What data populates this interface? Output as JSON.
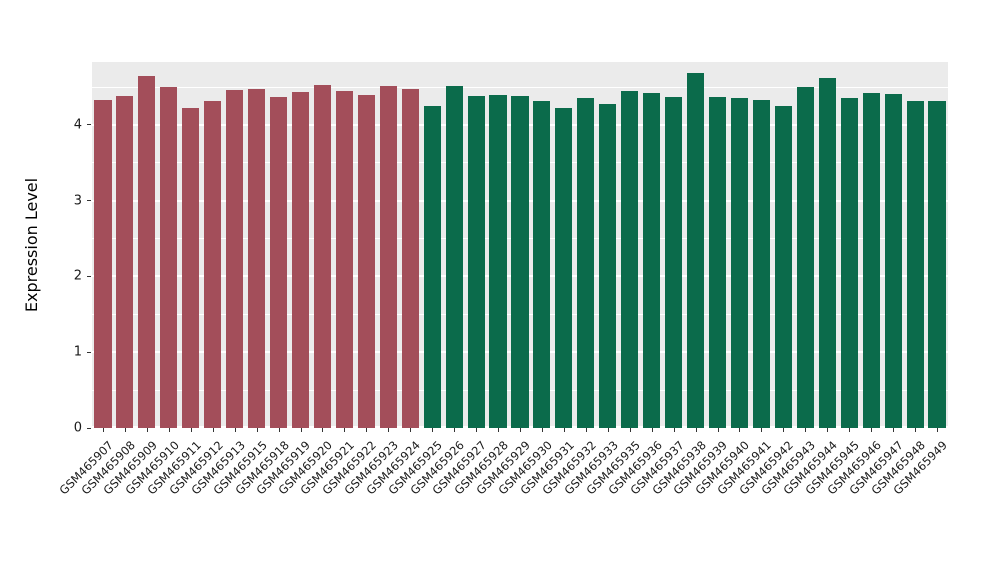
{
  "chart_data": {
    "type": "bar",
    "title": "",
    "xlabel": "",
    "ylabel": "Expression Level",
    "ylim": [
      0,
      4.83
    ],
    "y_ticks": [
      0,
      1,
      2,
      3,
      4
    ],
    "grid": "on",
    "legend": "none",
    "panel_background": "#EBEBEB",
    "gridline_color": "#ffffff",
    "group_split_index": 15,
    "bar_colors": {
      "group1": "#A34E5A",
      "group2": "#0B6B4B"
    },
    "categories": [
      "GSM465907",
      "GSM465908",
      "GSM465909",
      "GSM465910",
      "GSM465911",
      "GSM465912",
      "GSM465913",
      "GSM465915",
      "GSM465918",
      "GSM465919",
      "GSM465920",
      "GSM465921",
      "GSM465922",
      "GSM465923",
      "GSM465924",
      "GSM465925",
      "GSM465926",
      "GSM465927",
      "GSM465928",
      "GSM465929",
      "GSM465930",
      "GSM465931",
      "GSM465932",
      "GSM465933",
      "GSM465935",
      "GSM465936",
      "GSM465937",
      "GSM465938",
      "GSM465939",
      "GSM465940",
      "GSM465941",
      "GSM465942",
      "GSM465943",
      "GSM465944",
      "GSM465945",
      "GSM465946",
      "GSM465947",
      "GSM465948",
      "GSM465949"
    ],
    "values": [
      4.33,
      4.38,
      4.65,
      4.5,
      4.22,
      4.31,
      4.46,
      4.48,
      4.37,
      4.44,
      4.53,
      4.45,
      4.4,
      4.52,
      4.47,
      4.25,
      4.52,
      4.38,
      4.4,
      4.38,
      4.32,
      4.22,
      4.35,
      4.27,
      4.45,
      4.42,
      4.37,
      4.68,
      4.37,
      4.36,
      4.33,
      4.25,
      4.5,
      4.62,
      4.36,
      4.42,
      4.41,
      4.31,
      4.32
    ]
  }
}
